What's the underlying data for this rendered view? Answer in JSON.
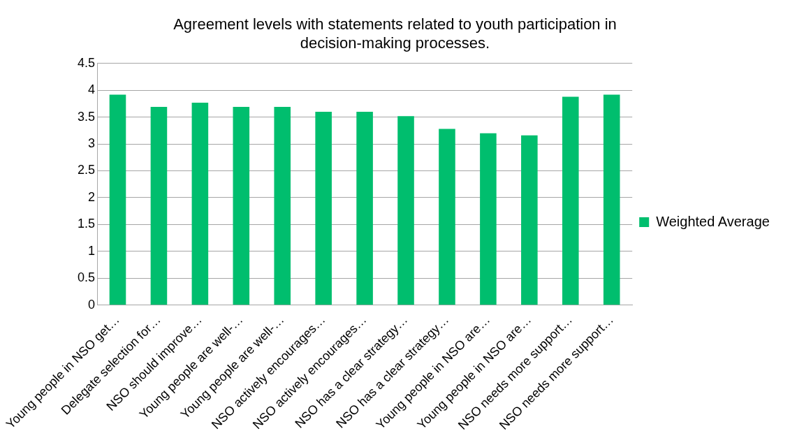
{
  "chart_data": {
    "type": "bar",
    "title": "Agreement levels with statements related to youth participation in decision-making processes.",
    "categories": [
      "Young people in NSO get…",
      "Delegate selection for…",
      "NSO should improve…",
      "Young people are well-…",
      "Young people are well-…",
      "NSO actively encourages…",
      "NSO actively encourages…",
      "NSO has a clear strategy…",
      "NSO has a clear strategy…",
      "Young people in NSO are…",
      "Young people in NSO are…",
      "NSO needs more support…",
      "NSO needs more support…"
    ],
    "series": [
      {
        "name": "Weighted Average",
        "color": "#00be6e",
        "values": [
          3.92,
          3.69,
          3.77,
          3.69,
          3.69,
          3.6,
          3.6,
          3.52,
          3.28,
          3.2,
          3.16,
          3.88,
          3.92
        ]
      }
    ],
    "ylim": [
      0,
      4.5
    ],
    "yticks": [
      0,
      0.5,
      1,
      1.5,
      2,
      2.5,
      3,
      3.5,
      4,
      4.5
    ],
    "grid": "y",
    "legend": "right"
  }
}
